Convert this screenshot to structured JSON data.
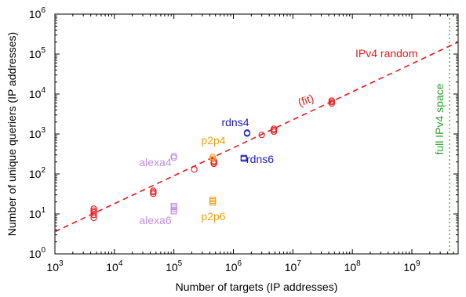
{
  "chart_data": {
    "type": "scatter",
    "title": "",
    "xlabel": "Number of targets (IP addresses)",
    "ylabel": "Number of unique queriers (IP addresses)",
    "x_scale": "log",
    "y_scale": "log",
    "xlim": [
      1000,
      6000000000
    ],
    "ylim": [
      1,
      1000000
    ],
    "grid": false,
    "x_ticks": [
      {
        "value": 1000,
        "base": "10",
        "exp": "3"
      },
      {
        "value": 10000,
        "base": "10",
        "exp": "4"
      },
      {
        "value": 100000,
        "base": "10",
        "exp": "5"
      },
      {
        "value": 1000000,
        "base": "10",
        "exp": "6"
      },
      {
        "value": 10000000,
        "base": "10",
        "exp": "7"
      },
      {
        "value": 100000000,
        "base": "10",
        "exp": "8"
      },
      {
        "value": 1000000000,
        "base": "10",
        "exp": "9"
      }
    ],
    "y_ticks": [
      {
        "value": 1,
        "base": "10",
        "exp": "0"
      },
      {
        "value": 10,
        "base": "10",
        "exp": "1"
      },
      {
        "value": 100,
        "base": "10",
        "exp": "2"
      },
      {
        "value": 1000,
        "base": "10",
        "exp": "3"
      },
      {
        "value": 10000,
        "base": "10",
        "exp": "4"
      },
      {
        "value": 100000,
        "base": "10",
        "exp": "5"
      },
      {
        "value": 1000000,
        "base": "10",
        "exp": "6"
      }
    ],
    "series": [
      {
        "name": "IPv4 random",
        "marker": "circle",
        "color": "#e41a1c",
        "points": [
          {
            "x": 4500,
            "y": 8
          },
          {
            "x": 4500,
            "y": 9.5
          },
          {
            "x": 4500,
            "y": 11
          },
          {
            "x": 4500,
            "y": 12
          },
          {
            "x": 4500,
            "y": 13.5
          },
          {
            "x": 45000,
            "y": 32
          },
          {
            "x": 45000,
            "y": 35
          },
          {
            "x": 45000,
            "y": 38
          },
          {
            "x": 220000,
            "y": 130
          },
          {
            "x": 470000,
            "y": 180
          },
          {
            "x": 470000,
            "y": 195
          },
          {
            "x": 470000,
            "y": 210
          },
          {
            "x": 3000000,
            "y": 950
          },
          {
            "x": 4800000,
            "y": 1150
          },
          {
            "x": 4800000,
            "y": 1250
          },
          {
            "x": 4800000,
            "y": 1350
          },
          {
            "x": 45000000,
            "y": 5800
          },
          {
            "x": 45000000,
            "y": 6300
          },
          {
            "x": 45000000,
            "y": 6800
          }
        ]
      },
      {
        "name": "rdns4",
        "marker": "circle",
        "color": "#1c1cbf",
        "points": [
          {
            "x": 1700000,
            "y": 1030
          },
          {
            "x": 1700000,
            "y": 1080
          }
        ]
      },
      {
        "name": "rdns6",
        "marker": "square",
        "color": "#1c1cbf",
        "points": [
          {
            "x": 1500000,
            "y": 240
          },
          {
            "x": 1500000,
            "y": 255
          }
        ]
      },
      {
        "name": "p2p4",
        "marker": "circle",
        "color": "#f0a010",
        "points": [
          {
            "x": 450000,
            "y": 240
          },
          {
            "x": 450000,
            "y": 265
          }
        ]
      },
      {
        "name": "p2p6",
        "marker": "square",
        "color": "#f0a010",
        "points": [
          {
            "x": 450000,
            "y": 19
          },
          {
            "x": 450000,
            "y": 21
          },
          {
            "x": 450000,
            "y": 23
          }
        ]
      },
      {
        "name": "alexa4",
        "marker": "circle",
        "color": "#c090e0",
        "points": [
          {
            "x": 100000,
            "y": 255
          },
          {
            "x": 100000,
            "y": 280
          }
        ]
      },
      {
        "name": "alexa6",
        "marker": "square",
        "color": "#c090e0",
        "points": [
          {
            "x": 100000,
            "y": 11.5
          },
          {
            "x": 100000,
            "y": 13
          },
          {
            "x": 100000,
            "y": 14.5
          },
          {
            "x": 100000,
            "y": 16
          }
        ]
      }
    ],
    "fit_line": {
      "color": "#e41a1c",
      "style": "dashed",
      "from": {
        "x": 1000,
        "y": 3.6
      },
      "to": {
        "x": 6000000000,
        "y": 200000
      }
    },
    "reference_line": {
      "x": 4300000000,
      "color": "#2ca02c",
      "style": "dotted",
      "label": "full IPv4 space"
    },
    "annotations": [
      {
        "id": "ipv4-random",
        "text": "IPv4 random",
        "color": "#e41a1c"
      },
      {
        "id": "fit",
        "text": "(fit)",
        "color": "#e41a1c"
      },
      {
        "id": "rdns4",
        "text": "rdns4",
        "color": "#1c1cbf"
      },
      {
        "id": "rdns6",
        "text": "rdns6",
        "color": "#1c1cbf"
      },
      {
        "id": "p2p4",
        "text": "p2p4",
        "color": "#f0a010"
      },
      {
        "id": "p2p6",
        "text": "p2p6",
        "color": "#f0a010"
      },
      {
        "id": "alexa4",
        "text": "alexa4",
        "color": "#c090e0"
      },
      {
        "id": "alexa6",
        "text": "alexa6",
        "color": "#c090e0"
      }
    ]
  }
}
